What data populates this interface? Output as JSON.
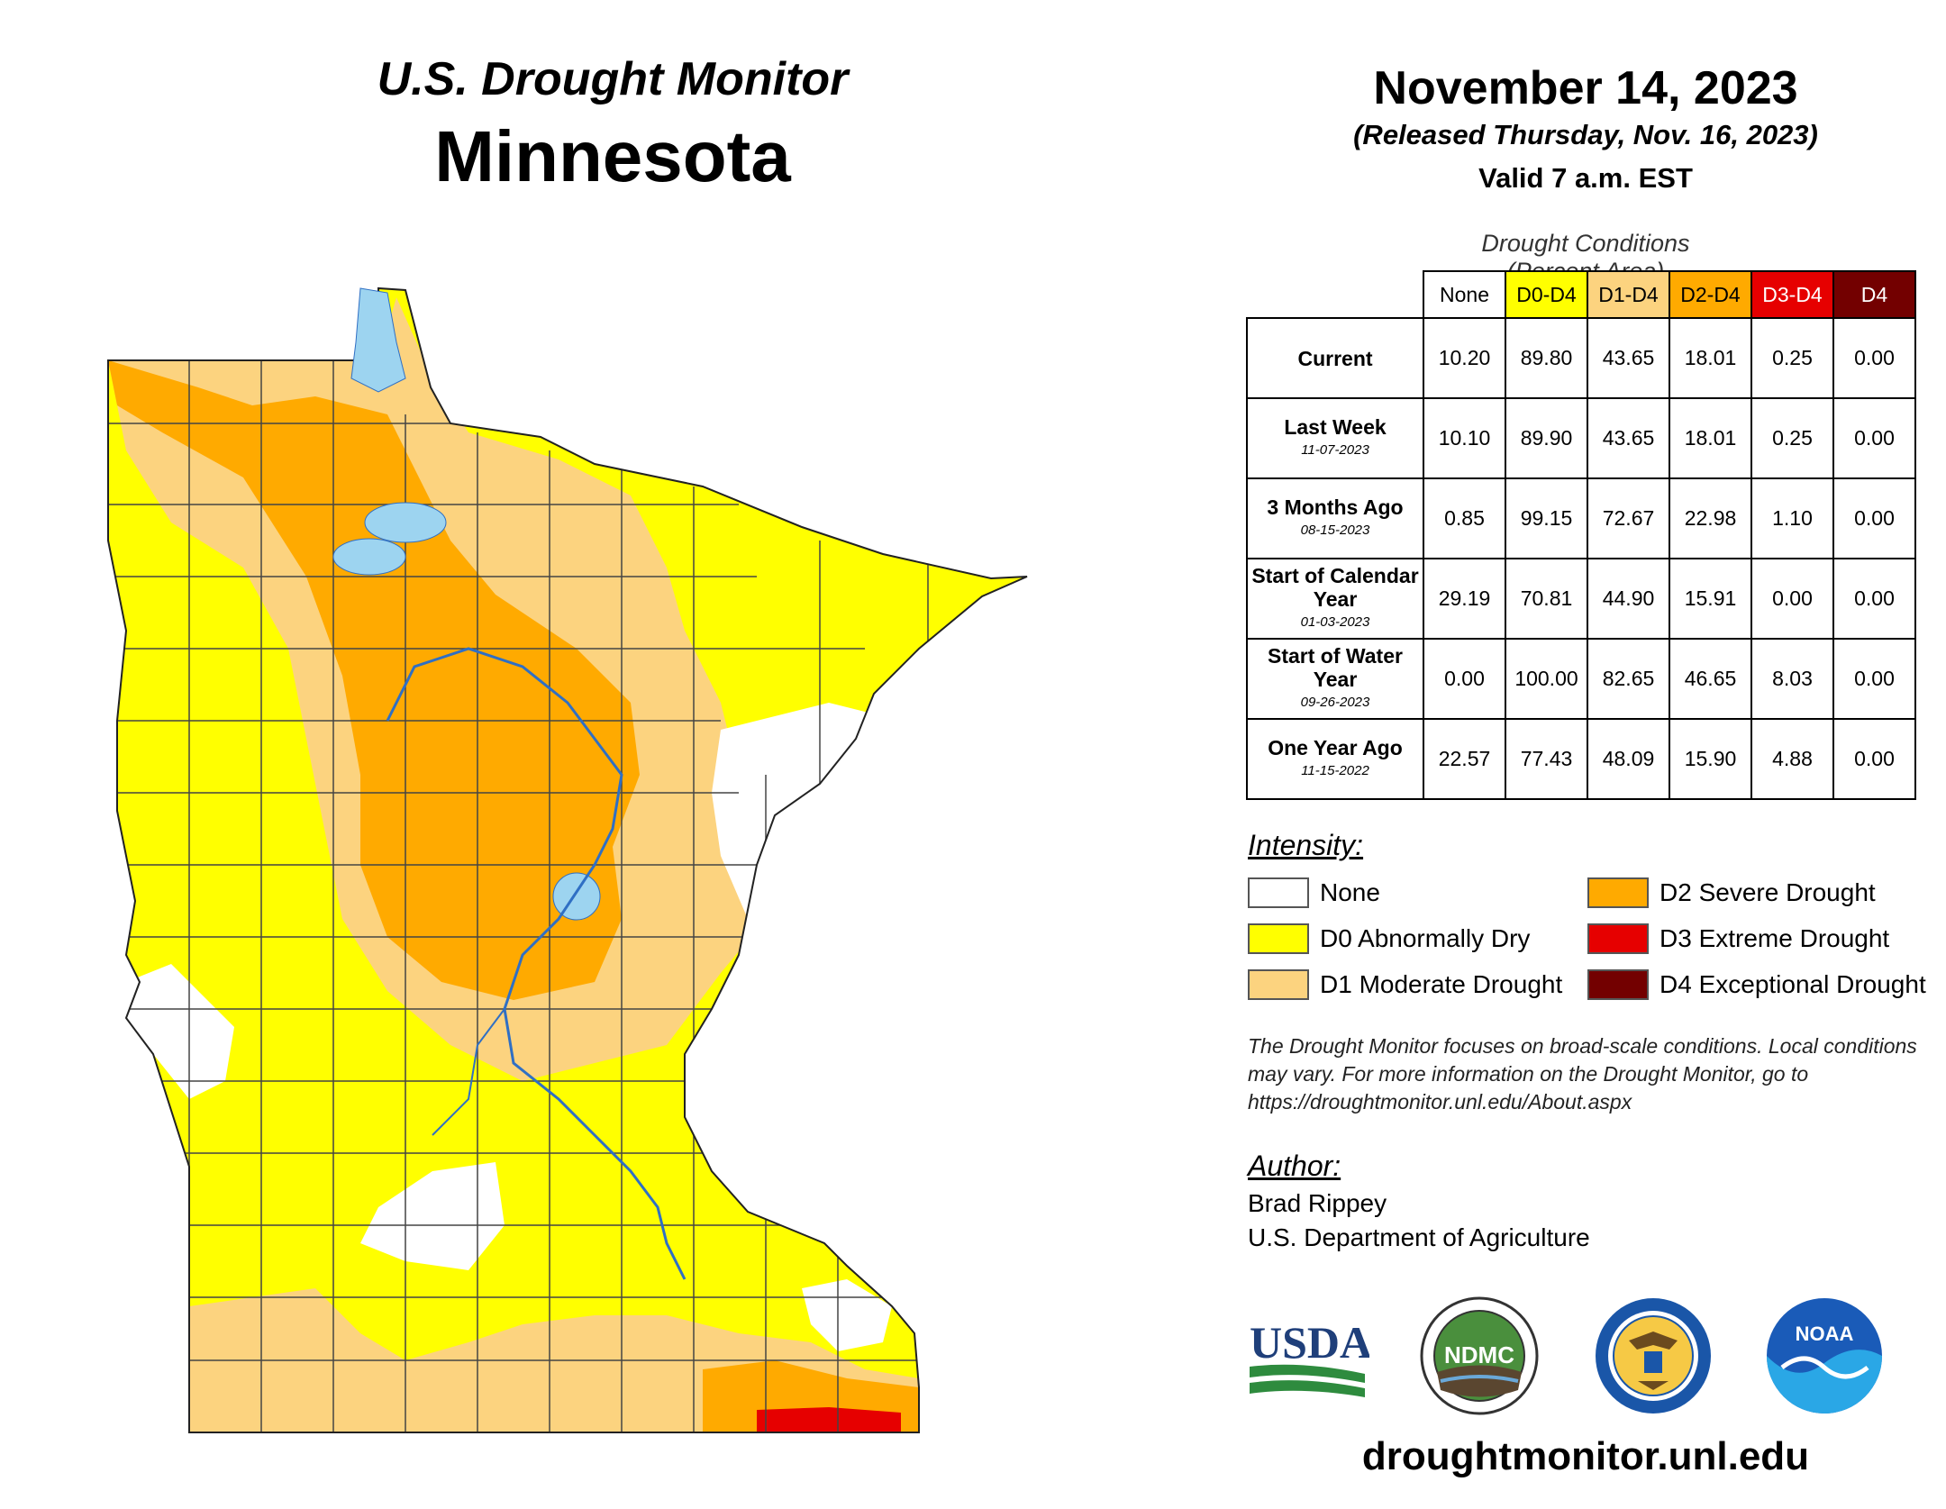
{
  "header": {
    "product": "U.S. Drought Monitor",
    "state": "Minnesota",
    "date": "November 14, 2023",
    "released": "(Released Thursday, Nov. 16, 2023)",
    "valid": "Valid 7 a.m. EST"
  },
  "table": {
    "title": "Drought Conditions (Percent Area)",
    "columns": [
      "None",
      "D0-D4",
      "D1-D4",
      "D2-D4",
      "D3-D4",
      "D4"
    ],
    "rows": [
      {
        "label": "Current",
        "date": "",
        "values": [
          "10.20",
          "89.80",
          "43.65",
          "18.01",
          "0.25",
          "0.00"
        ]
      },
      {
        "label": "Last Week",
        "date": "11-07-2023",
        "values": [
          "10.10",
          "89.90",
          "43.65",
          "18.01",
          "0.25",
          "0.00"
        ]
      },
      {
        "label": "3 Months Ago",
        "date": "08-15-2023",
        "values": [
          "0.85",
          "99.15",
          "72.67",
          "22.98",
          "1.10",
          "0.00"
        ]
      },
      {
        "label": "Start of Calendar Year",
        "date": "01-03-2023",
        "values": [
          "29.19",
          "70.81",
          "44.90",
          "15.91",
          "0.00",
          "0.00"
        ]
      },
      {
        "label": "Start of Water Year",
        "date": "09-26-2023",
        "values": [
          "0.00",
          "100.00",
          "82.65",
          "46.65",
          "8.03",
          "0.00"
        ]
      },
      {
        "label": "One Year Ago",
        "date": "11-15-2022",
        "values": [
          "22.57",
          "77.43",
          "48.09",
          "15.90",
          "4.88",
          "0.00"
        ]
      }
    ]
  },
  "legend": {
    "title": "Intensity:",
    "items": [
      {
        "label": "None",
        "color": "#ffffff"
      },
      {
        "label": "D0 Abnormally Dry",
        "color": "#ffff00"
      },
      {
        "label": "D1 Moderate Drought",
        "color": "#fcd37f"
      },
      {
        "label": "D2 Severe Drought",
        "color": "#ffaa00"
      },
      {
        "label": "D3 Extreme Drought",
        "color": "#e60000"
      },
      {
        "label": "D4 Exceptional Drought",
        "color": "#730000"
      }
    ]
  },
  "note": "The Drought Monitor focuses on broad-scale conditions. Local conditions may vary. For more information on the Drought Monitor, go to https://droughtmonitor.unl.edu/About.aspx",
  "author": {
    "title": "Author:",
    "name": "Brad Rippey",
    "org": "U.S. Department of Agriculture"
  },
  "logos": {
    "usda": "USDA",
    "ndmc": "NDMC",
    "doc": "department-of-commerce-seal",
    "noaa": "NOAA"
  },
  "website": "droughtmonitor.unl.edu",
  "map_colors": {
    "lake": "#9dd4f0",
    "river": "#2f6fc4",
    "county_line": "#444444"
  }
}
